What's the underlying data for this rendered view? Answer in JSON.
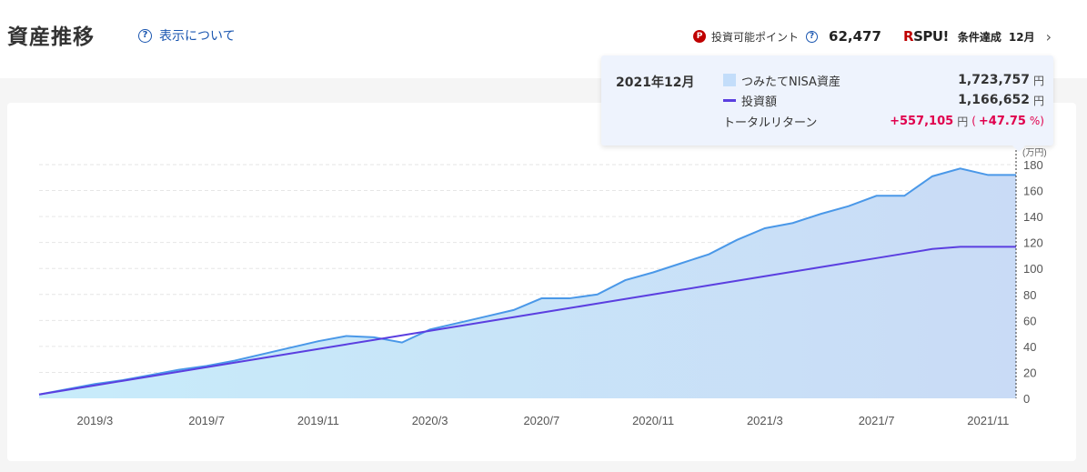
{
  "header": {
    "title": "資産推移",
    "help_link": "表示について",
    "points_label": "投資可能ポイント",
    "points_value": "62,477",
    "spu_logo_r": "R",
    "spu_logo_text": "SPU!",
    "spu_status": "条件達成",
    "spu_month": "12月"
  },
  "tooltip": {
    "date": "2021年12月",
    "asset_label": "つみたてNISA資産",
    "asset_value": "1,723,757",
    "invest_label": "投資額",
    "invest_value": "1,166,652",
    "yen": "円",
    "return_label": "トータルリターン",
    "return_value": "+557,105",
    "return_pct_open": "(",
    "return_pct": "+47.75",
    "return_pct_close": "%)"
  },
  "colors": {
    "asset_line": "#4a98e8",
    "invest_line": "#5b3fe0",
    "return_red": "#e0004d"
  },
  "chart_data": {
    "type": "area",
    "unit": "(万円)",
    "ylim": [
      0,
      180
    ],
    "yticks": [
      0,
      20,
      40,
      60,
      80,
      100,
      120,
      140,
      160,
      180
    ],
    "xtick_labels": [
      "2019/3",
      "2019/7",
      "2019/11",
      "2020/3",
      "2020/7",
      "2020/11",
      "2021/3",
      "2021/7",
      "2021/11"
    ],
    "x": [
      "2019/1",
      "2019/2",
      "2019/3",
      "2019/4",
      "2019/5",
      "2019/6",
      "2019/7",
      "2019/8",
      "2019/9",
      "2019/10",
      "2019/11",
      "2019/12",
      "2020/1",
      "2020/2",
      "2020/3",
      "2020/4",
      "2020/5",
      "2020/6",
      "2020/7",
      "2020/8",
      "2020/9",
      "2020/10",
      "2020/11",
      "2020/12",
      "2021/1",
      "2021/2",
      "2021/3",
      "2021/4",
      "2021/5",
      "2021/6",
      "2021/7",
      "2021/8",
      "2021/9",
      "2021/10",
      "2021/11",
      "2021/12"
    ],
    "series": [
      {
        "name": "つみたてNISA資産",
        "type": "area",
        "values": [
          3,
          7,
          11,
          14,
          18,
          22,
          25,
          29,
          34,
          39,
          44,
          48,
          47,
          43,
          53,
          58,
          63,
          68,
          77,
          77,
          80,
          91,
          97,
          104,
          111,
          122,
          131,
          135,
          142,
          148,
          156,
          156,
          171,
          177,
          172,
          172
        ]
      },
      {
        "name": "投資額",
        "type": "line",
        "values": [
          3,
          6.5,
          10,
          13.5,
          17,
          20.5,
          24,
          27.5,
          31,
          34.5,
          38,
          41.5,
          45,
          48.5,
          52,
          55.5,
          59,
          62.5,
          66,
          69.5,
          73,
          76.5,
          80,
          83.5,
          87,
          90.5,
          94,
          97.5,
          101,
          104.5,
          108,
          111.5,
          115,
          116.7,
          116.7,
          116.7
        ]
      }
    ]
  }
}
